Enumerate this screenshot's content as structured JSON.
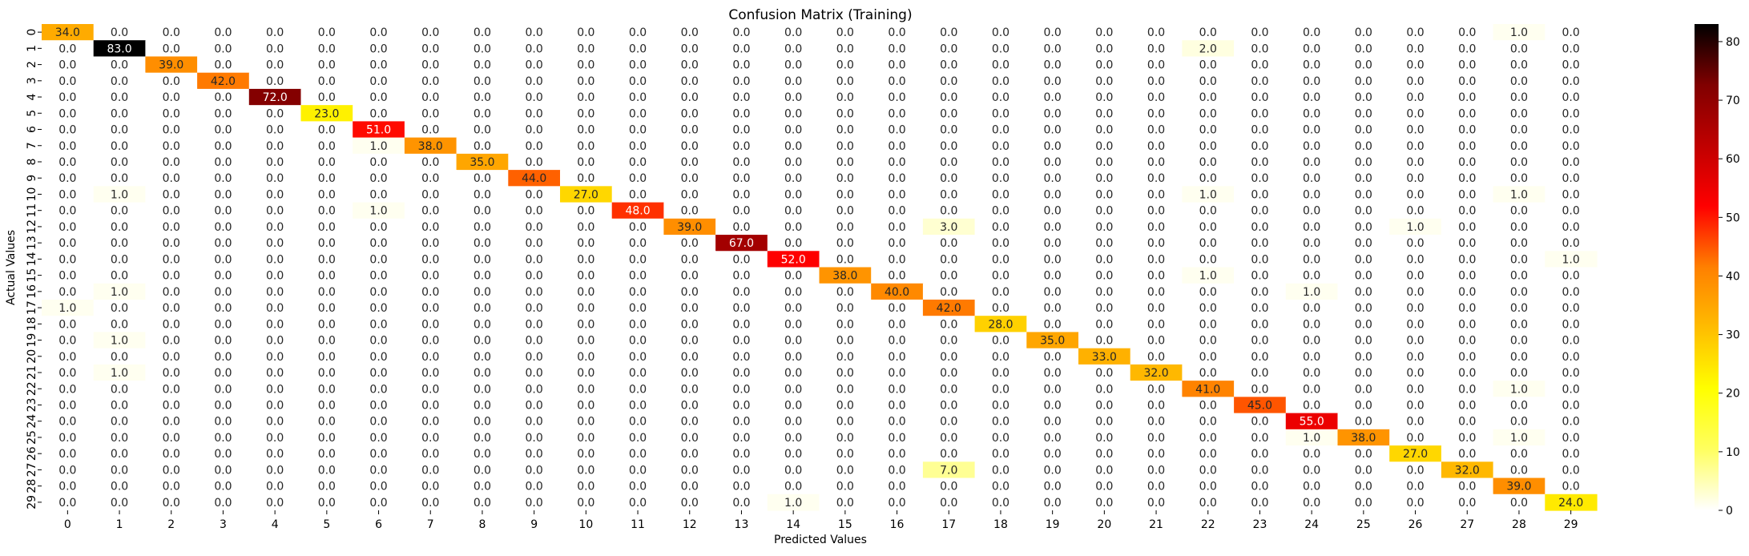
{
  "chart_data": {
    "type": "heatmap",
    "title": "Confusion Matrix (Training)",
    "xlabel": "Predicted Values",
    "ylabel": "Actual Values",
    "x_categories": [
      "0",
      "1",
      "2",
      "3",
      "4",
      "5",
      "6",
      "7",
      "8",
      "9",
      "10",
      "11",
      "12",
      "13",
      "14",
      "15",
      "16",
      "17",
      "18",
      "19",
      "20",
      "21",
      "22",
      "23",
      "24",
      "25",
      "26",
      "27",
      "28",
      "29"
    ],
    "y_categories": [
      "0",
      "1",
      "2",
      "3",
      "4",
      "5",
      "6",
      "7",
      "8",
      "9",
      "10",
      "11",
      "12",
      "13",
      "14",
      "15",
      "16",
      "17",
      "18",
      "19",
      "20",
      "21",
      "22",
      "23",
      "24",
      "25",
      "26",
      "27",
      "28",
      "29"
    ],
    "colormap": "hot_r",
    "colorbar_range": [
      0,
      83
    ],
    "colorbar_ticks": [
      "0",
      "10",
      "20",
      "30",
      "40",
      "50",
      "60",
      "70",
      "80"
    ],
    "value_format": "%.1f",
    "diagonal": [
      34,
      83,
      39,
      42,
      72,
      23,
      51,
      38,
      35,
      44,
      27,
      48,
      39,
      67,
      52,
      38,
      40,
      42,
      28,
      35,
      33,
      32,
      41,
      45,
      55,
      38,
      27,
      32,
      39,
      24
    ],
    "off_diagonal": [
      {
        "row": 0,
        "col": 28,
        "value": 1
      },
      {
        "row": 1,
        "col": 22,
        "value": 2
      },
      {
        "row": 7,
        "col": 6,
        "value": 1
      },
      {
        "row": 10,
        "col": 1,
        "value": 1
      },
      {
        "row": 10,
        "col": 22,
        "value": 1
      },
      {
        "row": 10,
        "col": 28,
        "value": 1
      },
      {
        "row": 11,
        "col": 6,
        "value": 1
      },
      {
        "row": 12,
        "col": 17,
        "value": 3
      },
      {
        "row": 12,
        "col": 26,
        "value": 1
      },
      {
        "row": 14,
        "col": 29,
        "value": 1
      },
      {
        "row": 15,
        "col": 22,
        "value": 1
      },
      {
        "row": 16,
        "col": 1,
        "value": 1
      },
      {
        "row": 16,
        "col": 24,
        "value": 1
      },
      {
        "row": 17,
        "col": 0,
        "value": 1
      },
      {
        "row": 19,
        "col": 1,
        "value": 1
      },
      {
        "row": 21,
        "col": 1,
        "value": 1
      },
      {
        "row": 22,
        "col": 28,
        "value": 1
      },
      {
        "row": 25,
        "col": 24,
        "value": 1
      },
      {
        "row": 25,
        "col": 28,
        "value": 1
      },
      {
        "row": 27,
        "col": 17,
        "value": 7
      },
      {
        "row": 29,
        "col": 14,
        "value": 1
      }
    ]
  }
}
